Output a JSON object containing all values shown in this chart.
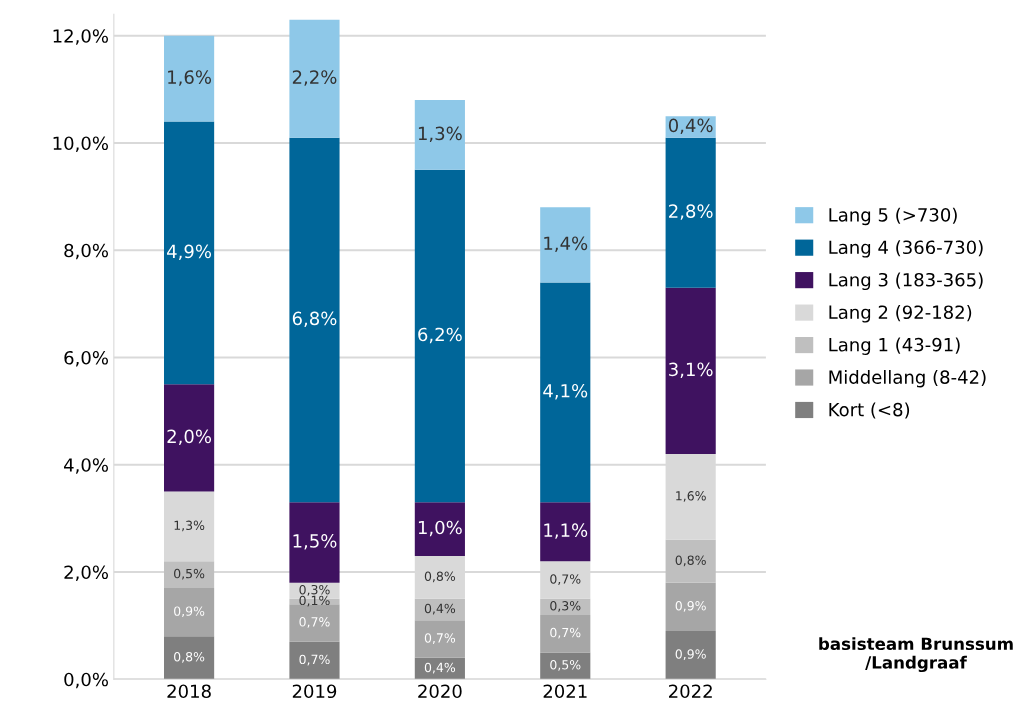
{
  "chart_data": {
    "type": "bar",
    "stacked": true,
    "categories": [
      "2018",
      "2019",
      "2020",
      "2021",
      "2022"
    ],
    "series": [
      {
        "name": "Kort (<8)",
        "color": "#7f7f7f",
        "values": [
          0.8,
          0.7,
          0.4,
          0.5,
          0.9
        ],
        "value_labels": [
          "0,8%",
          "0,7%",
          "0,4%",
          "0,5%",
          "0,9%"
        ]
      },
      {
        "name": "Middellang (8-42)",
        "color": "#a6a6a6",
        "values": [
          0.9,
          0.7,
          0.7,
          0.7,
          0.9
        ],
        "value_labels": [
          "0,9%",
          "0,7%",
          "0,7%",
          "0,7%",
          "0,9%"
        ]
      },
      {
        "name": "Lang 1 (43-91)",
        "color": "#bfbfbf",
        "values": [
          0.5,
          0.1,
          0.4,
          0.3,
          0.8
        ],
        "value_labels": [
          "0,5%",
          "0,1%",
          "0,4%",
          "0,3%",
          "0,8%"
        ]
      },
      {
        "name": "Lang 2 (92-182)",
        "color": "#d9d9d9",
        "values": [
          1.3,
          0.3,
          0.8,
          0.7,
          1.6
        ],
        "value_labels": [
          "1,3%",
          "0,3%",
          "0,8%",
          "0,7%",
          "1,6%"
        ]
      },
      {
        "name": "Lang 3 (183-365)",
        "color": "#3f1260",
        "values": [
          2.0,
          1.5,
          1.0,
          1.1,
          3.1
        ],
        "value_labels": [
          "2,0%",
          "1,5%",
          "1,0%",
          "1,1%",
          "3,1%"
        ]
      },
      {
        "name": "Lang 4 (366-730)",
        "color": "#006699",
        "values": [
          4.9,
          6.8,
          6.2,
          4.1,
          2.8
        ],
        "value_labels": [
          "4,9%",
          "6,8%",
          "6,2%",
          "4,1%",
          "2,8%"
        ]
      },
      {
        "name": "Lang 5 (>730)",
        "color": "#8ec8e8",
        "values": [
          1.6,
          2.2,
          1.3,
          1.4,
          0.4
        ],
        "value_labels": [
          "1,6%",
          "2,2%",
          "1,3%",
          "1,4%",
          "0,4%"
        ]
      }
    ],
    "ylim": [
      0,
      12.4
    ],
    "yticks": [
      {
        "value": 0,
        "label": "0,0%"
      },
      {
        "value": 2,
        "label": "2,0%"
      },
      {
        "value": 4,
        "label": "4,0%"
      },
      {
        "value": 6,
        "label": "6,0%"
      },
      {
        "value": 8,
        "label": "8,0%"
      },
      {
        "value": 10,
        "label": "10,0%"
      },
      {
        "value": 12,
        "label": "12,0%"
      }
    ],
    "grid": "y",
    "legend": "right",
    "annotations": [
      "basisteam Brunssum\n/Landgraaf"
    ]
  }
}
